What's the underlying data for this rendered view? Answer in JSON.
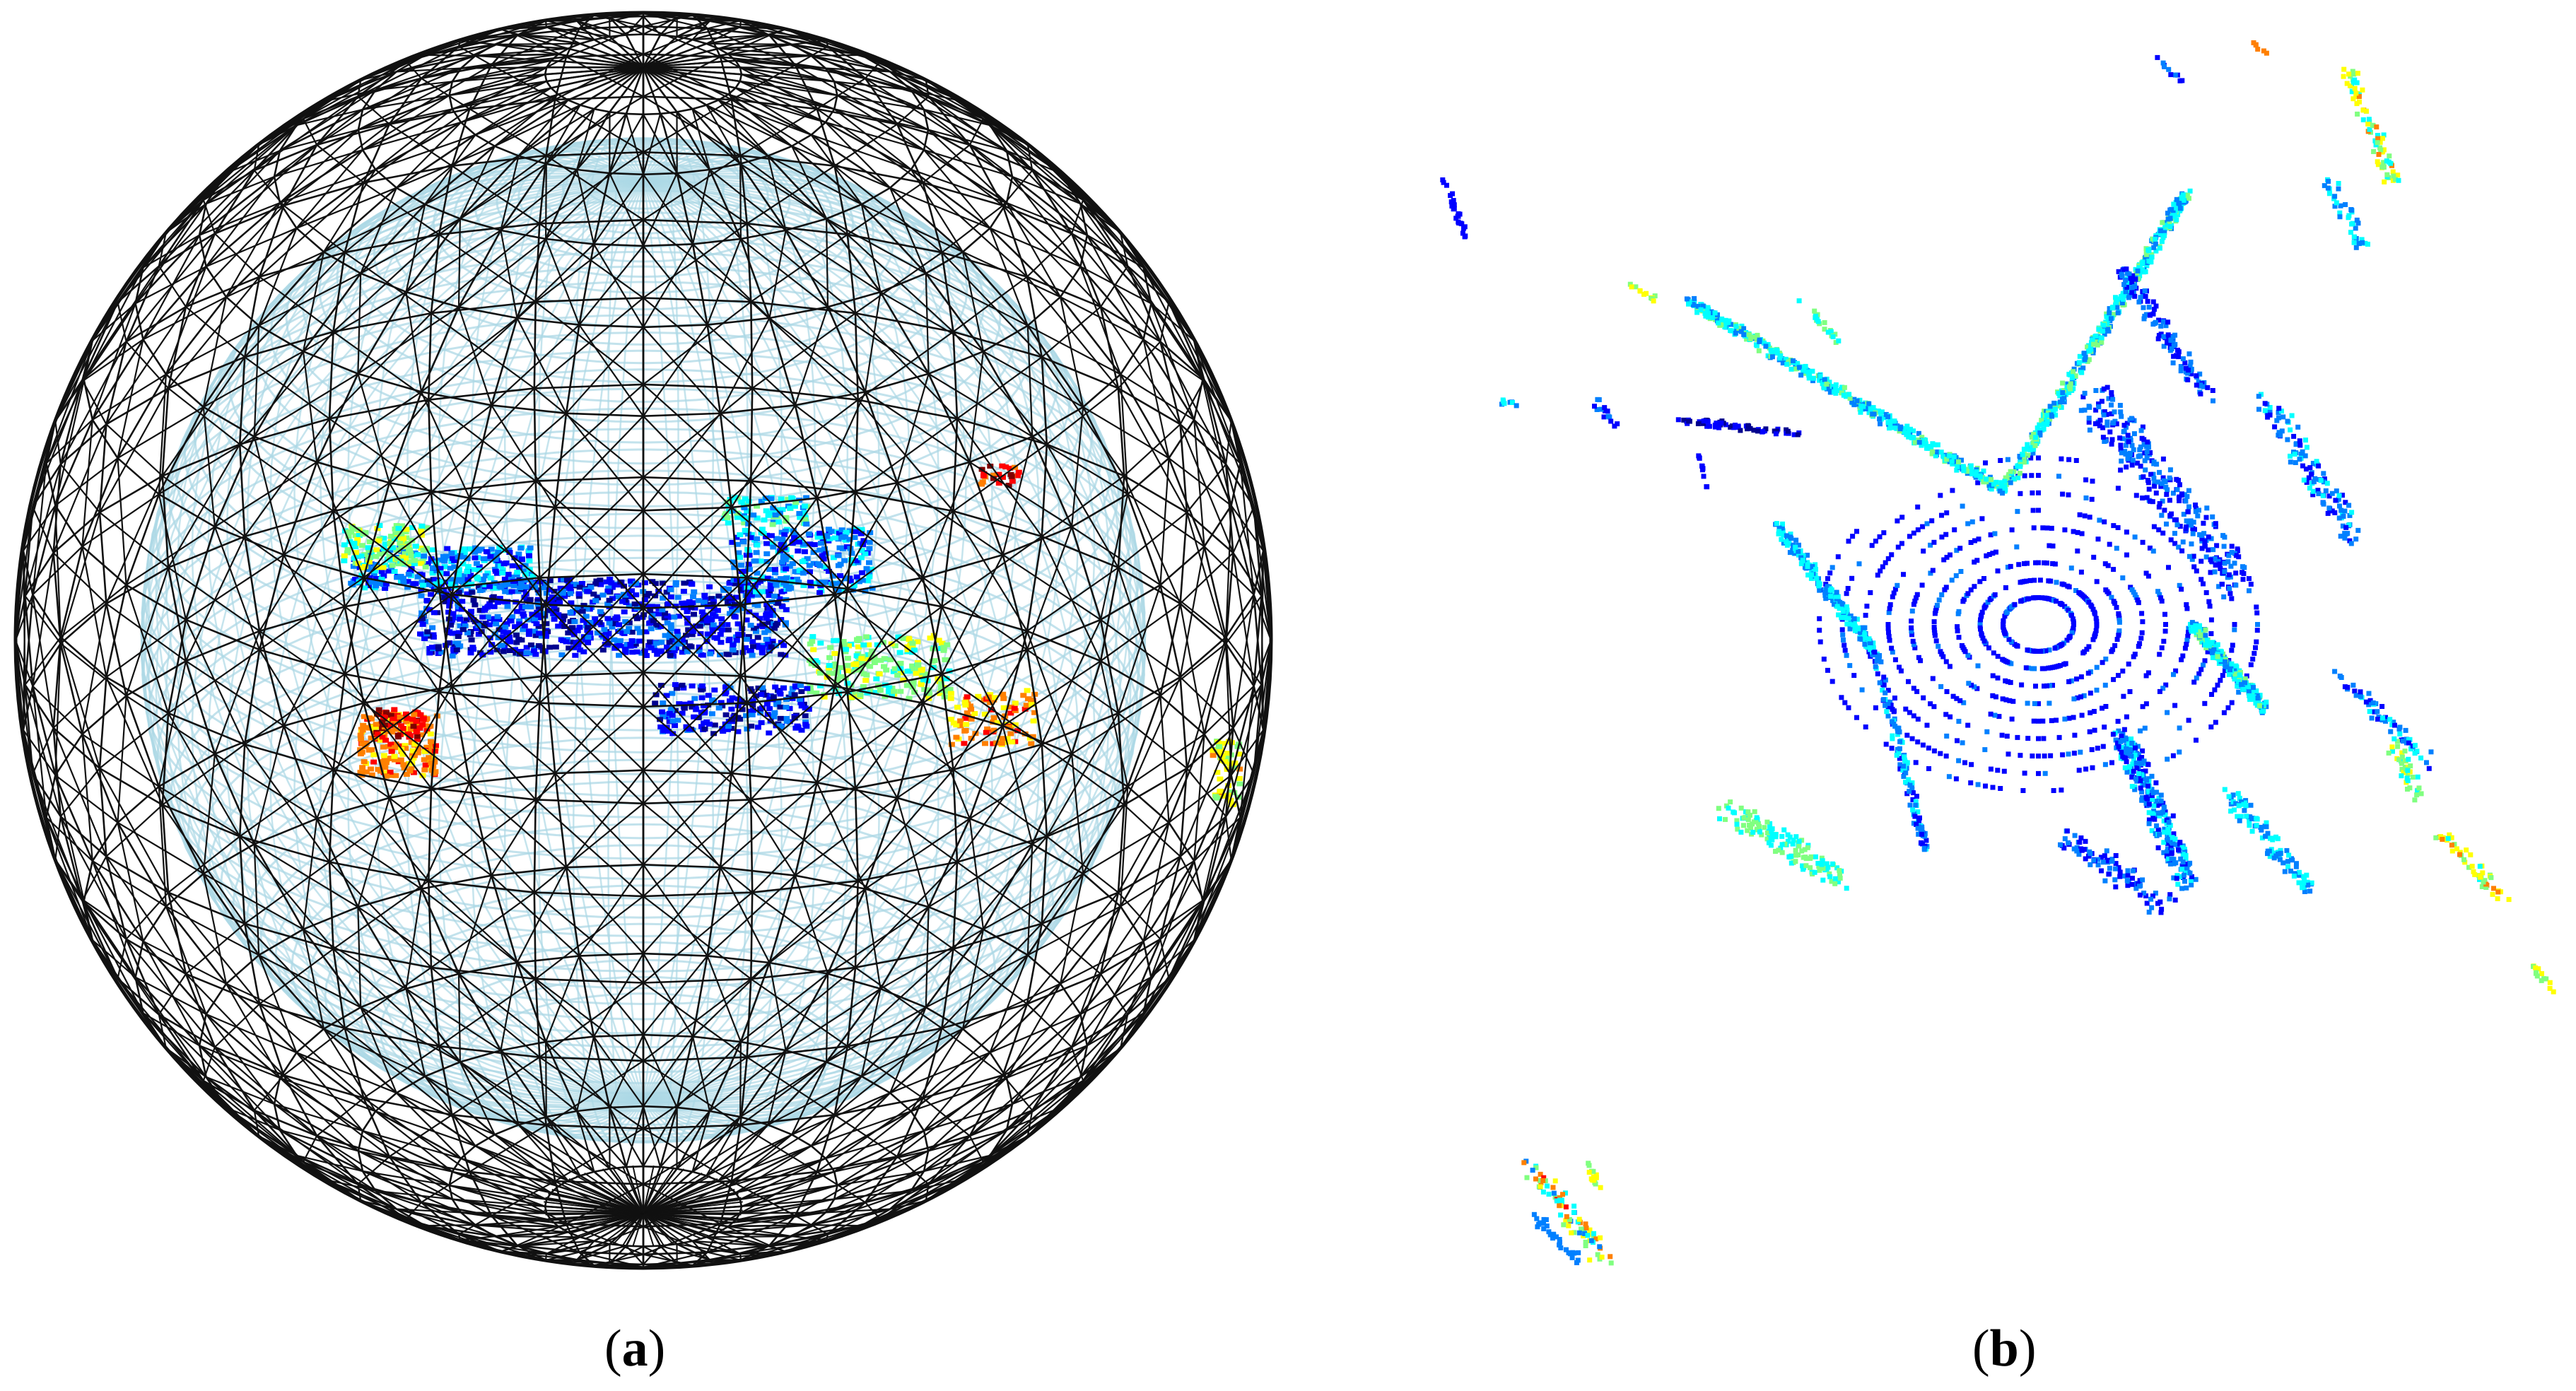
{
  "figure": {
    "panel_a": {
      "label_open": "(",
      "label_letter": "a",
      "label_close": ")",
      "wire_color": "#111111",
      "inner_color": "#add8e6",
      "colormap": [
        "#00008f",
        "#0000ff",
        "#0080ff",
        "#00ffff",
        "#80ff80",
        "#ffff00",
        "#ff8000",
        "#ff0000",
        "#800000"
      ]
    },
    "panel_b": {
      "label_open": "(",
      "label_letter": "b",
      "label_close": ")",
      "colormap": [
        "#00008f",
        "#0000ff",
        "#0080ff",
        "#00ffff",
        "#80ff80",
        "#ffff00",
        "#ff8000",
        "#ff0000"
      ]
    }
  }
}
